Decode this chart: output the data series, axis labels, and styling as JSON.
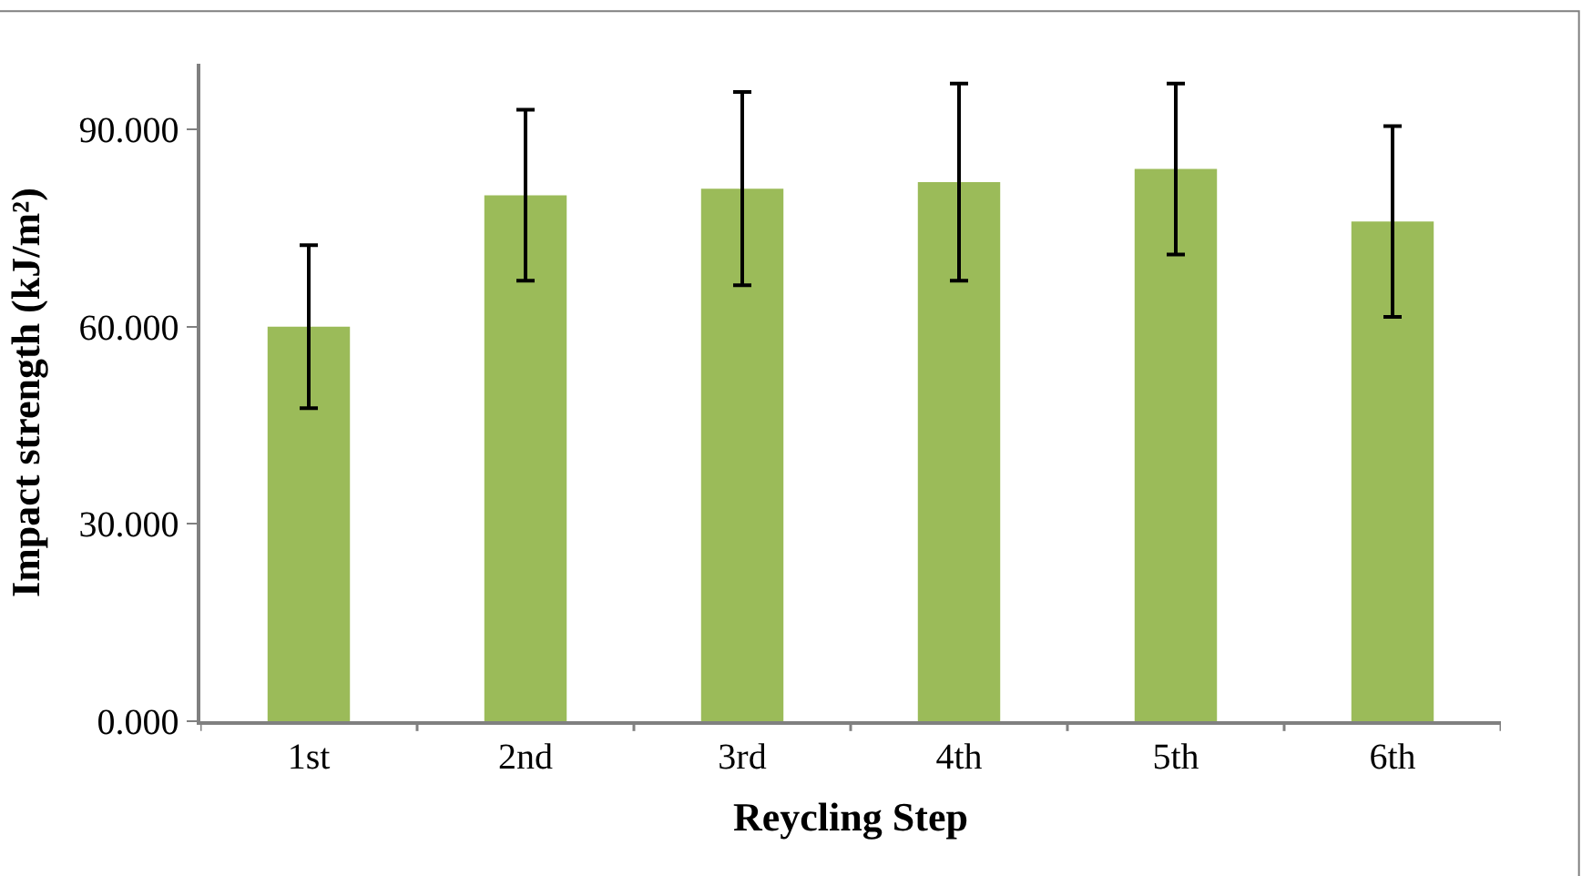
{
  "chart_data": {
    "type": "bar",
    "xlabel": "Reycling Step",
    "ylabel": "Impact strength (kJ/m²)",
    "categories": [
      "1st",
      "2nd",
      "3rd",
      "4th",
      "5th",
      "6th"
    ],
    "values": [
      60,
      80,
      81,
      82,
      84,
      76
    ],
    "errors": [
      12.4,
      13,
      14.7,
      15,
      13,
      14.5
    ],
    "color": "#9bbb59",
    "ylim": [
      0,
      100
    ],
    "yticks": [
      {
        "value": 0,
        "label": "0.000"
      },
      {
        "value": 30,
        "label": "30.000"
      },
      {
        "value": 60,
        "label": "60.000"
      },
      {
        "value": 90,
        "label": "90.000"
      }
    ]
  }
}
